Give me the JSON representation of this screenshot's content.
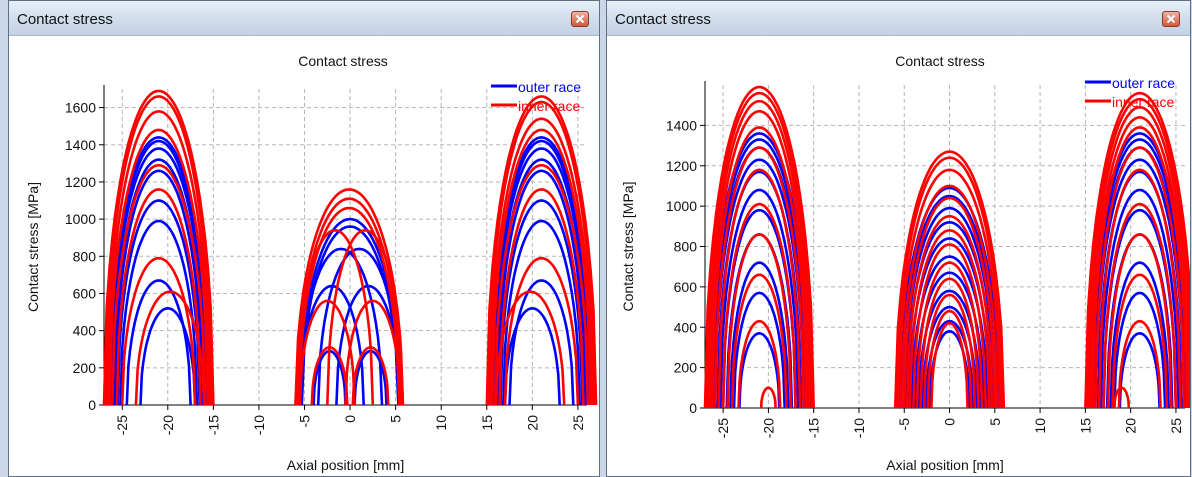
{
  "windows": [
    {
      "title": "Contact stress"
    },
    {
      "title": "Contact stress"
    }
  ],
  "chart_data": [
    {
      "type": "line",
      "title": "Contact stress",
      "xlabel": "Axial position [mm]",
      "ylabel": "Contact stress [MPa]",
      "xlim": [
        -27,
        26
      ],
      "ylim": [
        0,
        1700
      ],
      "xticks": [
        -25,
        -20,
        -15,
        -10,
        -5,
        0,
        5,
        10,
        15,
        20,
        25
      ],
      "yticks": [
        0,
        200,
        400,
        600,
        800,
        1000,
        1200,
        1400,
        1600
      ],
      "grid": true,
      "legend": "top-right",
      "series": [
        {
          "name": "outer race",
          "color": "#0000ff",
          "arches": [
            {
              "xmin": -26.5,
              "xmax": -15.5,
              "peak": 1440
            },
            {
              "xmin": -26.3,
              "xmax": -15.7,
              "peak": 1420
            },
            {
              "xmin": -26.2,
              "xmax": -15.8,
              "peak": 1380
            },
            {
              "xmin": -26.0,
              "xmax": -16.0,
              "peak": 1320
            },
            {
              "xmin": -25.8,
              "xmax": -16.2,
              "peak": 1260
            },
            {
              "xmin": -25.5,
              "xmax": -16.5,
              "peak": 1100
            },
            {
              "xmin": -25.2,
              "xmax": -16.8,
              "peak": 990
            },
            {
              "xmin": -24.5,
              "xmax": -17.5,
              "peak": 670
            },
            {
              "xmin": -23.0,
              "xmax": -17.0,
              "peak": 520
            },
            {
              "xmin": -5.5,
              "xmax": 5.5,
              "peak": 1000
            },
            {
              "xmin": -5.3,
              "xmax": 5.3,
              "peak": 960
            },
            {
              "xmin": -5.5,
              "xmax": 3.5,
              "peak": 840
            },
            {
              "xmin": -3.5,
              "xmax": 5.5,
              "peak": 840
            },
            {
              "xmin": -5.5,
              "xmax": 1.5,
              "peak": 640
            },
            {
              "xmin": -1.5,
              "xmax": 5.5,
              "peak": 640
            },
            {
              "xmin": -4.0,
              "xmax": -0.5,
              "peak": 290
            },
            {
              "xmin": 0.5,
              "xmax": 4.0,
              "peak": 290
            },
            {
              "xmin": 15.5,
              "xmax": 26.5,
              "peak": 1440
            },
            {
              "xmin": 15.7,
              "xmax": 26.3,
              "peak": 1420
            },
            {
              "xmin": 15.8,
              "xmax": 26.2,
              "peak": 1380
            },
            {
              "xmin": 16.0,
              "xmax": 26.0,
              "peak": 1320
            },
            {
              "xmin": 16.2,
              "xmax": 25.8,
              "peak": 1260
            },
            {
              "xmin": 16.5,
              "xmax": 25.5,
              "peak": 1100
            },
            {
              "xmin": 16.8,
              "xmax": 25.2,
              "peak": 990
            },
            {
              "xmin": 17.5,
              "xmax": 24.5,
              "peak": 670
            },
            {
              "xmin": 17.0,
              "xmax": 23.0,
              "peak": 520
            }
          ]
        },
        {
          "name": "inner race",
          "color": "#ff0000",
          "arches": [
            {
              "xmin": -27.0,
              "xmax": -15.0,
              "peak": 1690
            },
            {
              "xmin": -26.8,
              "xmax": -15.2,
              "peak": 1660
            },
            {
              "xmin": -26.6,
              "xmax": -15.4,
              "peak": 1580
            },
            {
              "xmin": -26.4,
              "xmax": -15.6,
              "peak": 1480
            },
            {
              "xmin": -26.1,
              "xmax": -15.9,
              "peak": 1290
            },
            {
              "xmin": -25.6,
              "xmax": -16.4,
              "peak": 1160
            },
            {
              "xmin": -25.0,
              "xmax": -17.0,
              "peak": 790
            },
            {
              "xmin": -23.5,
              "xmax": -16.0,
              "peak": 610
            },
            {
              "xmin": -6.0,
              "xmax": 5.8,
              "peak": 1160
            },
            {
              "xmin": -5.8,
              "xmax": 5.6,
              "peak": 1110
            },
            {
              "xmin": -5.6,
              "xmax": 5.4,
              "peak": 1060
            },
            {
              "xmin": -5.8,
              "xmax": 2.5,
              "peak": 940
            },
            {
              "xmin": -2.5,
              "xmax": 5.8,
              "peak": 940
            },
            {
              "xmin": -5.5,
              "xmax": 0.5,
              "peak": 560
            },
            {
              "xmin": -0.5,
              "xmax": 5.5,
              "peak": 560
            },
            {
              "xmin": -4.2,
              "xmax": -0.3,
              "peak": 310
            },
            {
              "xmin": 0.3,
              "xmax": 4.2,
              "peak": 310
            },
            {
              "xmin": 15.0,
              "xmax": 27.0,
              "peak": 1660
            },
            {
              "xmin": 15.2,
              "xmax": 26.8,
              "peak": 1630
            },
            {
              "xmin": 15.4,
              "xmax": 26.6,
              "peak": 1540
            },
            {
              "xmin": 15.6,
              "xmax": 26.4,
              "peak": 1480
            },
            {
              "xmin": 15.9,
              "xmax": 26.1,
              "peak": 1290
            },
            {
              "xmin": 16.4,
              "xmax": 25.6,
              "peak": 1160
            },
            {
              "xmin": 17.0,
              "xmax": 25.0,
              "peak": 790
            },
            {
              "xmin": 16.0,
              "xmax": 23.5,
              "peak": 610
            }
          ]
        }
      ]
    },
    {
      "type": "line",
      "title": "Contact stress",
      "xlabel": "Axial position [mm]",
      "ylabel": "Contact stress [MPa]",
      "xlim": [
        -27,
        26
      ],
      "ylim": [
        0,
        1600
      ],
      "xticks": [
        -25,
        -20,
        -15,
        -10,
        -5,
        0,
        5,
        10,
        15,
        20,
        25
      ],
      "yticks": [
        0,
        200,
        400,
        600,
        800,
        1000,
        1200,
        1400
      ],
      "grid": true,
      "legend": "top-right",
      "series": [
        {
          "name": "outer race",
          "color": "#0000ff",
          "arches": [
            {
              "xmin": -26.5,
              "xmax": -15.5,
              "peak": 1360
            },
            {
              "xmin": -26.3,
              "xmax": -15.7,
              "peak": 1330
            },
            {
              "xmin": -26.1,
              "xmax": -15.9,
              "peak": 1290
            },
            {
              "xmin": -25.9,
              "xmax": -16.1,
              "peak": 1230
            },
            {
              "xmin": -25.6,
              "xmax": -16.4,
              "peak": 1170
            },
            {
              "xmin": -25.3,
              "xmax": -16.7,
              "peak": 1080
            },
            {
              "xmin": -25.0,
              "xmax": -17.0,
              "peak": 980
            },
            {
              "xmin": -24.6,
              "xmax": -17.4,
              "peak": 860
            },
            {
              "xmin": -24.2,
              "xmax": -17.8,
              "peak": 720
            },
            {
              "xmin": -23.8,
              "xmax": -18.2,
              "peak": 570
            },
            {
              "xmin": -23.2,
              "xmax": -18.8,
              "peak": 370
            },
            {
              "xmin": -5.5,
              "xmax": 5.5,
              "peak": 1090
            },
            {
              "xmin": -5.3,
              "xmax": 5.3,
              "peak": 1050
            },
            {
              "xmin": -5.0,
              "xmax": 5.0,
              "peak": 990
            },
            {
              "xmin": -4.8,
              "xmax": 4.8,
              "peak": 920
            },
            {
              "xmin": -4.5,
              "xmax": 4.5,
              "peak": 840
            },
            {
              "xmin": -4.2,
              "xmax": 4.2,
              "peak": 750
            },
            {
              "xmin": -3.8,
              "xmax": 3.8,
              "peak": 670
            },
            {
              "xmin": -3.4,
              "xmax": 3.4,
              "peak": 580
            },
            {
              "xmin": -3.0,
              "xmax": 3.0,
              "peak": 500
            },
            {
              "xmin": -2.6,
              "xmax": 2.6,
              "peak": 430
            },
            {
              "xmin": -2.2,
              "xmax": 2.2,
              "peak": 380
            },
            {
              "xmin": 15.5,
              "xmax": 26.5,
              "peak": 1360
            },
            {
              "xmin": 15.7,
              "xmax": 26.3,
              "peak": 1330
            },
            {
              "xmin": 15.9,
              "xmax": 26.1,
              "peak": 1290
            },
            {
              "xmin": 16.1,
              "xmax": 25.9,
              "peak": 1230
            },
            {
              "xmin": 16.4,
              "xmax": 25.6,
              "peak": 1170
            },
            {
              "xmin": 16.7,
              "xmax": 25.3,
              "peak": 1080
            },
            {
              "xmin": 17.0,
              "xmax": 25.0,
              "peak": 980
            },
            {
              "xmin": 17.4,
              "xmax": 24.6,
              "peak": 860
            },
            {
              "xmin": 17.8,
              "xmax": 24.2,
              "peak": 720
            },
            {
              "xmin": 18.2,
              "xmax": 23.8,
              "peak": 570
            },
            {
              "xmin": 18.8,
              "xmax": 23.2,
              "peak": 370
            }
          ]
        },
        {
          "name": "inner race",
          "color": "#ff0000",
          "arches": [
            {
              "xmin": -27.0,
              "xmax": -15.0,
              "peak": 1590
            },
            {
              "xmin": -26.8,
              "xmax": -15.2,
              "peak": 1560
            },
            {
              "xmin": -26.6,
              "xmax": -15.4,
              "peak": 1520
            },
            {
              "xmin": -26.4,
              "xmax": -15.6,
              "peak": 1470
            },
            {
              "xmin": -26.2,
              "xmax": -15.8,
              "peak": 1390
            },
            {
              "xmin": -25.9,
              "xmax": -16.1,
              "peak": 1290
            },
            {
              "xmin": -25.5,
              "xmax": -16.5,
              "peak": 1180
            },
            {
              "xmin": -25.0,
              "xmax": -17.0,
              "peak": 1010
            },
            {
              "xmin": -24.5,
              "xmax": -17.5,
              "peak": 860
            },
            {
              "xmin": -24.0,
              "xmax": -18.0,
              "peak": 660
            },
            {
              "xmin": -23.3,
              "xmax": -18.7,
              "peak": 430
            },
            {
              "xmin": -20.8,
              "xmax": -19.2,
              "peak": 100
            },
            {
              "xmin": -6.0,
              "xmax": 6.0,
              "peak": 1270
            },
            {
              "xmin": -5.8,
              "xmax": 5.8,
              "peak": 1240
            },
            {
              "xmin": -5.6,
              "xmax": 5.6,
              "peak": 1180
            },
            {
              "xmin": -5.3,
              "xmax": 5.3,
              "peak": 1100
            },
            {
              "xmin": -5.0,
              "xmax": 5.0,
              "peak": 1040
            },
            {
              "xmin": -4.7,
              "xmax": 4.7,
              "peak": 950
            },
            {
              "xmin": -4.4,
              "xmax": 4.4,
              "peak": 880
            },
            {
              "xmin": -4.0,
              "xmax": 4.0,
              "peak": 810
            },
            {
              "xmin": -3.6,
              "xmax": 3.6,
              "peak": 720
            },
            {
              "xmin": -3.2,
              "xmax": 3.2,
              "peak": 640
            },
            {
              "xmin": -2.8,
              "xmax": 2.8,
              "peak": 560
            },
            {
              "xmin": -2.4,
              "xmax": 2.4,
              "peak": 480
            },
            {
              "xmin": -2.0,
              "xmax": 2.0,
              "peak": 420
            },
            {
              "xmin": 15.0,
              "xmax": 27.0,
              "peak": 1560
            },
            {
              "xmin": 15.2,
              "xmax": 26.8,
              "peak": 1530
            },
            {
              "xmin": 15.4,
              "xmax": 26.6,
              "peak": 1490
            },
            {
              "xmin": 15.6,
              "xmax": 26.4,
              "peak": 1440
            },
            {
              "xmin": 15.8,
              "xmax": 26.2,
              "peak": 1390
            },
            {
              "xmin": 16.1,
              "xmax": 25.9,
              "peak": 1290
            },
            {
              "xmin": 16.5,
              "xmax": 25.5,
              "peak": 1180
            },
            {
              "xmin": 17.0,
              "xmax": 25.0,
              "peak": 1010
            },
            {
              "xmin": 17.5,
              "xmax": 24.5,
              "peak": 860
            },
            {
              "xmin": 18.0,
              "xmax": 24.0,
              "peak": 660
            },
            {
              "xmin": 18.7,
              "xmax": 23.3,
              "peak": 430
            },
            {
              "xmin": 18.2,
              "xmax": 19.8,
              "peak": 100
            }
          ]
        }
      ]
    }
  ]
}
